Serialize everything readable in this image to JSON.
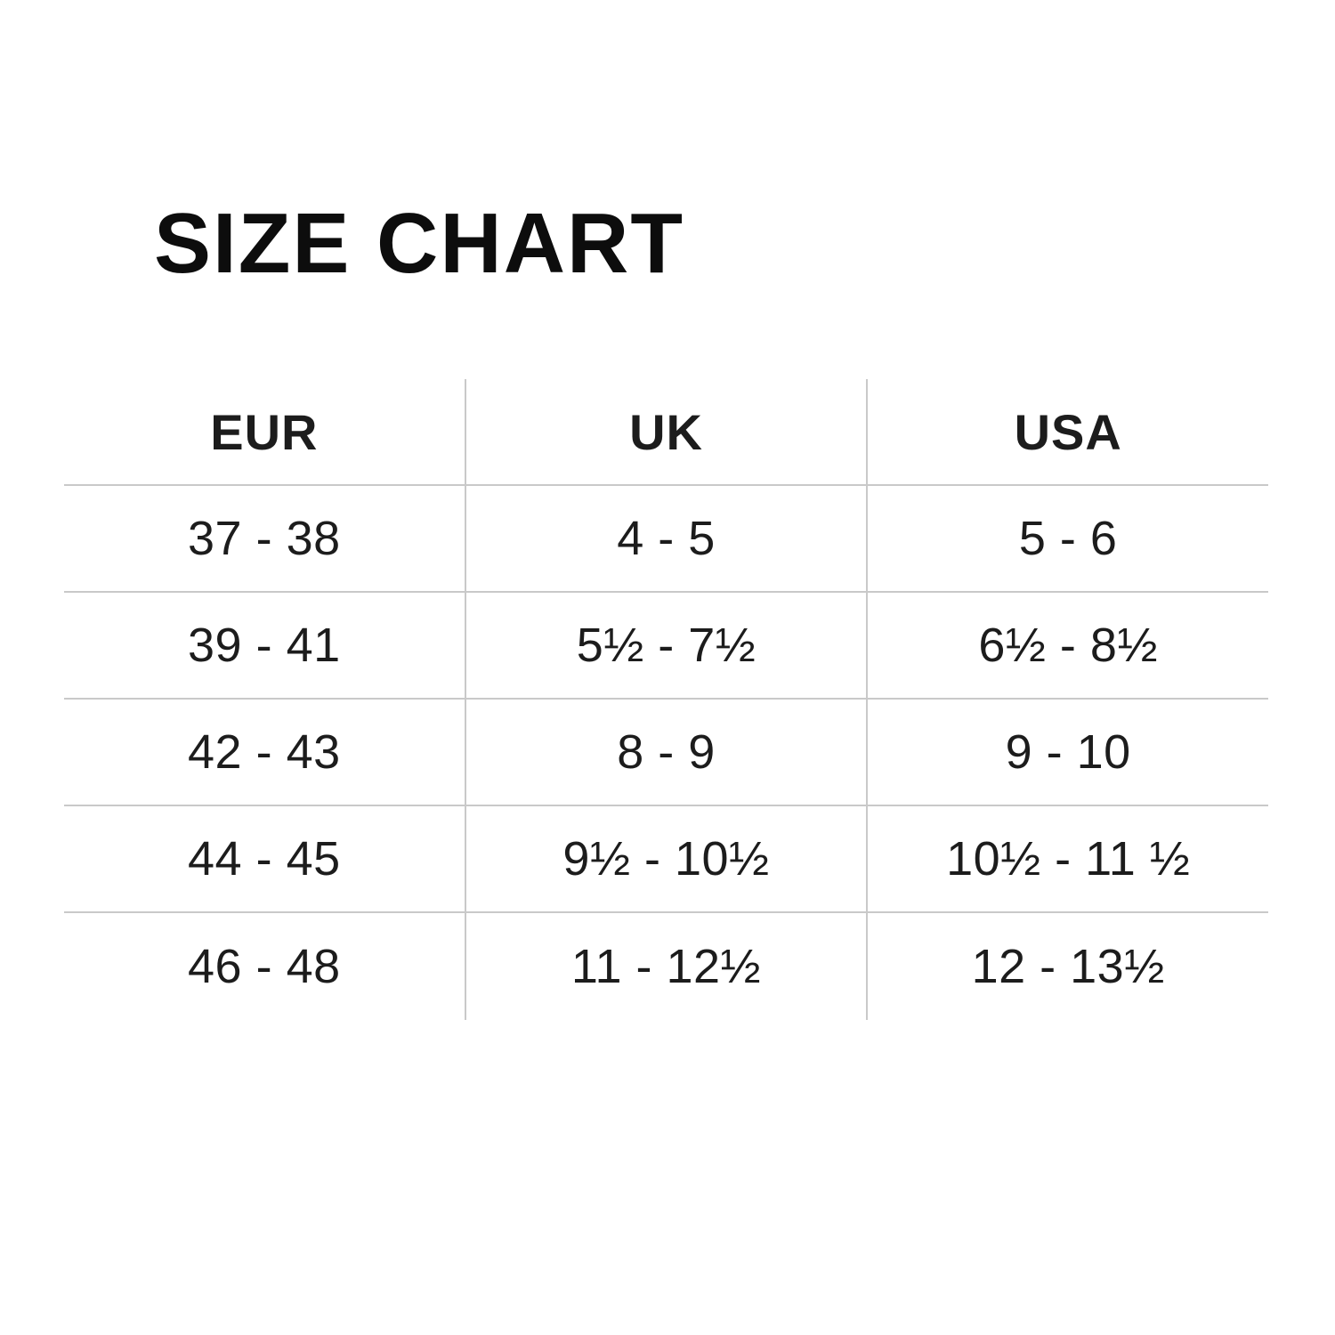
{
  "page": {
    "title": "SIZE CHART"
  },
  "theme": {
    "background": "#ffffff",
    "text_color": "#1c1c1c",
    "title_color": "#0d0d0d",
    "line_color": "#c9c9c9"
  },
  "chart_data": {
    "type": "table",
    "title": "SIZE CHART",
    "columns": [
      "EUR",
      "UK",
      "USA"
    ],
    "rows": [
      [
        "37 - 38",
        "4 - 5",
        "5 - 6"
      ],
      [
        "39 - 41",
        "5½ - 7½",
        "6½ - 8½"
      ],
      [
        "42 - 43",
        "8 - 9",
        "9 - 10"
      ],
      [
        "44 - 45",
        "9½ - 10½",
        "10½ - 11 ½"
      ],
      [
        "46 - 48",
        "11 - 12½",
        "12 - 13½"
      ]
    ],
    "layout": {
      "grid": "horizontal rules between rows, vertical rules between columns, no outer border, no rule under last row",
      "columns_equal_width": true,
      "text_align": "center"
    }
  }
}
